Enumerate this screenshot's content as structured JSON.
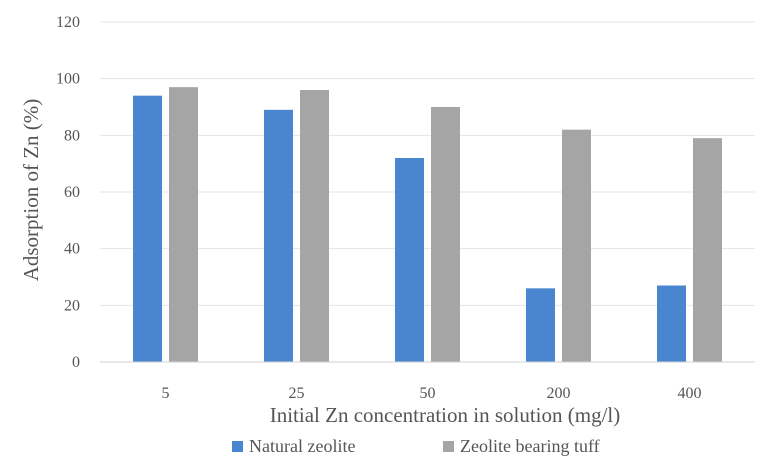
{
  "chart_data": {
    "type": "bar",
    "title": "",
    "xlabel": "Initial Zn concentration in solution (mg/l)",
    "ylabel": "Adsorption of Zn (%)",
    "categories": [
      "5",
      "25",
      "50",
      "200",
      "400"
    ],
    "ylim": [
      0,
      120
    ],
    "yticks": [
      "0",
      "20",
      "40",
      "60",
      "80",
      "100",
      "120"
    ],
    "grid": true,
    "legend_position": "bottom",
    "series": [
      {
        "name": "Natural zeolite",
        "color": "#4a86cf",
        "values": [
          94,
          89,
          72,
          26,
          27
        ]
      },
      {
        "name": "Zeolite bearing tuff",
        "color": "#a5a5a5",
        "values": [
          97,
          96,
          90,
          82,
          79
        ]
      }
    ]
  }
}
